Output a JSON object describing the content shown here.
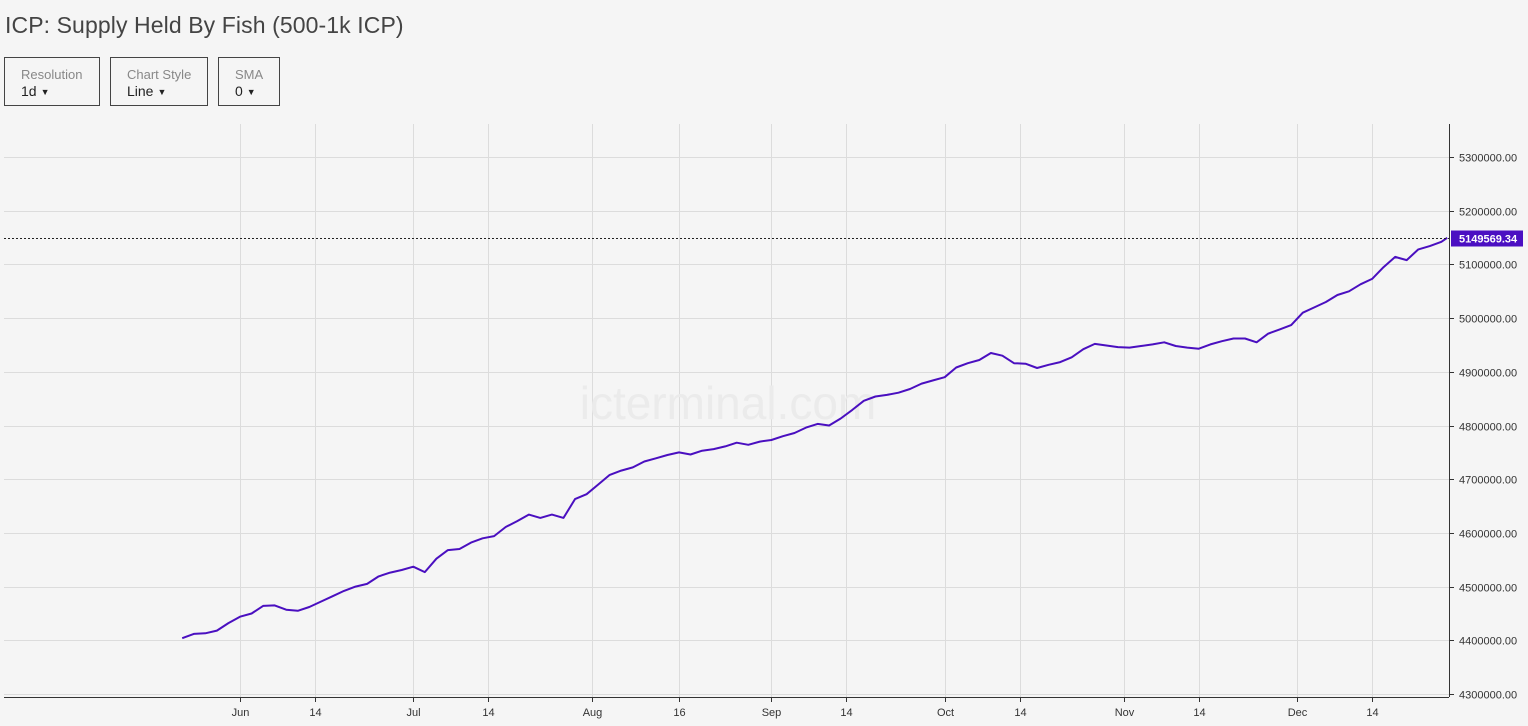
{
  "title": "ICP: Supply Held By Fish (500-1k ICP)",
  "controls": {
    "resolution": {
      "label": "Resolution",
      "value": "1d"
    },
    "chart_style": {
      "label": "Chart Style",
      "value": "Line"
    },
    "sma": {
      "label": "SMA",
      "value": "0"
    }
  },
  "watermark": "icterminal.com",
  "colors": {
    "line": "#4a0fc0",
    "last_price_bg": "#4b0fc2",
    "grid": "#dcdcdc"
  },
  "chart_data": {
    "type": "line",
    "x_ticks": [
      {
        "label": "Jun",
        "date": "2023-06-01"
      },
      {
        "label": "14",
        "date": "2023-06-14"
      },
      {
        "label": "Jul",
        "date": "2023-07-01"
      },
      {
        "label": "14",
        "date": "2023-07-14"
      },
      {
        "label": "Aug",
        "date": "2023-08-01"
      },
      {
        "label": "16",
        "date": "2023-08-16"
      },
      {
        "label": "Sep",
        "date": "2023-09-01"
      },
      {
        "label": "14",
        "date": "2023-09-14"
      },
      {
        "label": "Oct",
        "date": "2023-10-01"
      },
      {
        "label": "14",
        "date": "2023-10-14"
      },
      {
        "label": "Nov",
        "date": "2023-11-01"
      },
      {
        "label": "14",
        "date": "2023-11-14"
      },
      {
        "label": "Dec",
        "date": "2023-12-01"
      },
      {
        "label": "14",
        "date": "2023-12-14"
      }
    ],
    "y_ticks": [
      "5300000.00",
      "5200000.00",
      "5100000.00",
      "5000000.00",
      "4900000.00",
      "4800000.00",
      "4700000.00",
      "4600000.00",
      "4500000.00",
      "4400000.00",
      "4300000.00"
    ],
    "ylim": [
      4300000,
      5300000
    ],
    "last_value": 5149569.34,
    "last_value_label": "5149569.34",
    "grid": true,
    "series": [
      {
        "x": [
          "2023-05-22",
          "2023-05-24",
          "2023-05-26",
          "2023-05-28",
          "2023-05-30",
          "2023-06-01",
          "2023-06-03",
          "2023-06-05",
          "2023-06-07",
          "2023-06-09",
          "2023-06-11",
          "2023-06-13",
          "2023-06-15",
          "2023-06-17",
          "2023-06-19",
          "2023-06-21",
          "2023-06-23",
          "2023-06-25",
          "2023-06-27",
          "2023-06-29",
          "2023-07-01",
          "2023-07-03",
          "2023-07-05",
          "2023-07-07",
          "2023-07-09",
          "2023-07-11",
          "2023-07-13",
          "2023-07-15",
          "2023-07-17",
          "2023-07-19",
          "2023-07-21",
          "2023-07-23",
          "2023-07-25",
          "2023-07-27",
          "2023-07-29",
          "2023-07-31",
          "2023-08-02",
          "2023-08-04",
          "2023-08-06",
          "2023-08-08",
          "2023-08-10",
          "2023-08-12",
          "2023-08-14",
          "2023-08-16",
          "2023-08-18",
          "2023-08-20",
          "2023-08-22",
          "2023-08-24",
          "2023-08-26",
          "2023-08-28",
          "2023-08-30",
          "2023-09-01",
          "2023-09-03",
          "2023-09-05",
          "2023-09-07",
          "2023-09-09",
          "2023-09-11",
          "2023-09-13",
          "2023-09-15",
          "2023-09-17",
          "2023-09-19",
          "2023-09-21",
          "2023-09-23",
          "2023-09-25",
          "2023-09-27",
          "2023-09-29",
          "2023-10-01",
          "2023-10-03",
          "2023-10-05",
          "2023-10-07",
          "2023-10-09",
          "2023-10-11",
          "2023-10-13",
          "2023-10-15",
          "2023-10-17",
          "2023-10-19",
          "2023-10-21",
          "2023-10-23",
          "2023-10-25",
          "2023-10-27",
          "2023-10-29",
          "2023-10-31",
          "2023-11-02",
          "2023-11-04",
          "2023-11-06",
          "2023-11-08",
          "2023-11-10",
          "2023-11-12",
          "2023-11-14",
          "2023-11-16",
          "2023-11-18",
          "2023-11-20",
          "2023-11-22",
          "2023-11-24",
          "2023-11-26",
          "2023-11-28",
          "2023-11-30",
          "2023-12-02",
          "2023-12-04",
          "2023-12-06",
          "2023-12-08",
          "2023-12-10",
          "2023-12-12",
          "2023-12-14",
          "2023-12-16",
          "2023-12-18",
          "2023-12-20",
          "2023-12-22",
          "2023-12-24",
          "2023-12-26",
          "2023-12-27"
        ],
        "values": [
          4404000,
          4412000,
          4413000,
          4418000,
          4432000,
          4444000,
          4450000,
          4464000,
          4465000,
          4457000,
          4455000,
          4462000,
          4472000,
          4482000,
          4492000,
          4500000,
          4505000,
          4519000,
          4526000,
          4531000,
          4537000,
          4527000,
          4552000,
          4568000,
          4570000,
          4582000,
          4590000,
          4594000,
          4611000,
          4622000,
          4634000,
          4628000,
          4634000,
          4628000,
          4663000,
          4672000,
          4690000,
          4708000,
          4716000,
          4722000,
          4733000,
          4739000,
          4745000,
          4750000,
          4746000,
          4753000,
          4756000,
          4761000,
          4768000,
          4764000,
          4770000,
          4773000,
          4780000,
          4786000,
          4796000,
          4803000,
          4800000,
          4813000,
          4829000,
          4846000,
          4854000,
          4857000,
          4861000,
          4868000,
          4878000,
          4884000,
          4890000,
          4908000,
          4916000,
          4922000,
          4935000,
          4930000,
          4916000,
          4915000,
          4907000,
          4913000,
          4918000,
          4927000,
          4942000,
          4952000,
          4949000,
          4946000,
          4945000,
          4948000,
          4951000,
          4955000,
          4948000,
          4945000,
          4943000,
          4951000,
          4957000,
          4962000,
          4962000,
          4955000,
          4971000,
          4979000,
          4987000,
          5010000,
          5020000,
          5030000,
          5043000,
          5050000,
          5063000,
          5073000,
          5095000,
          5114000,
          5108000,
          5128000,
          5134000,
          5142000,
          5149569.34
        ]
      }
    ]
  }
}
